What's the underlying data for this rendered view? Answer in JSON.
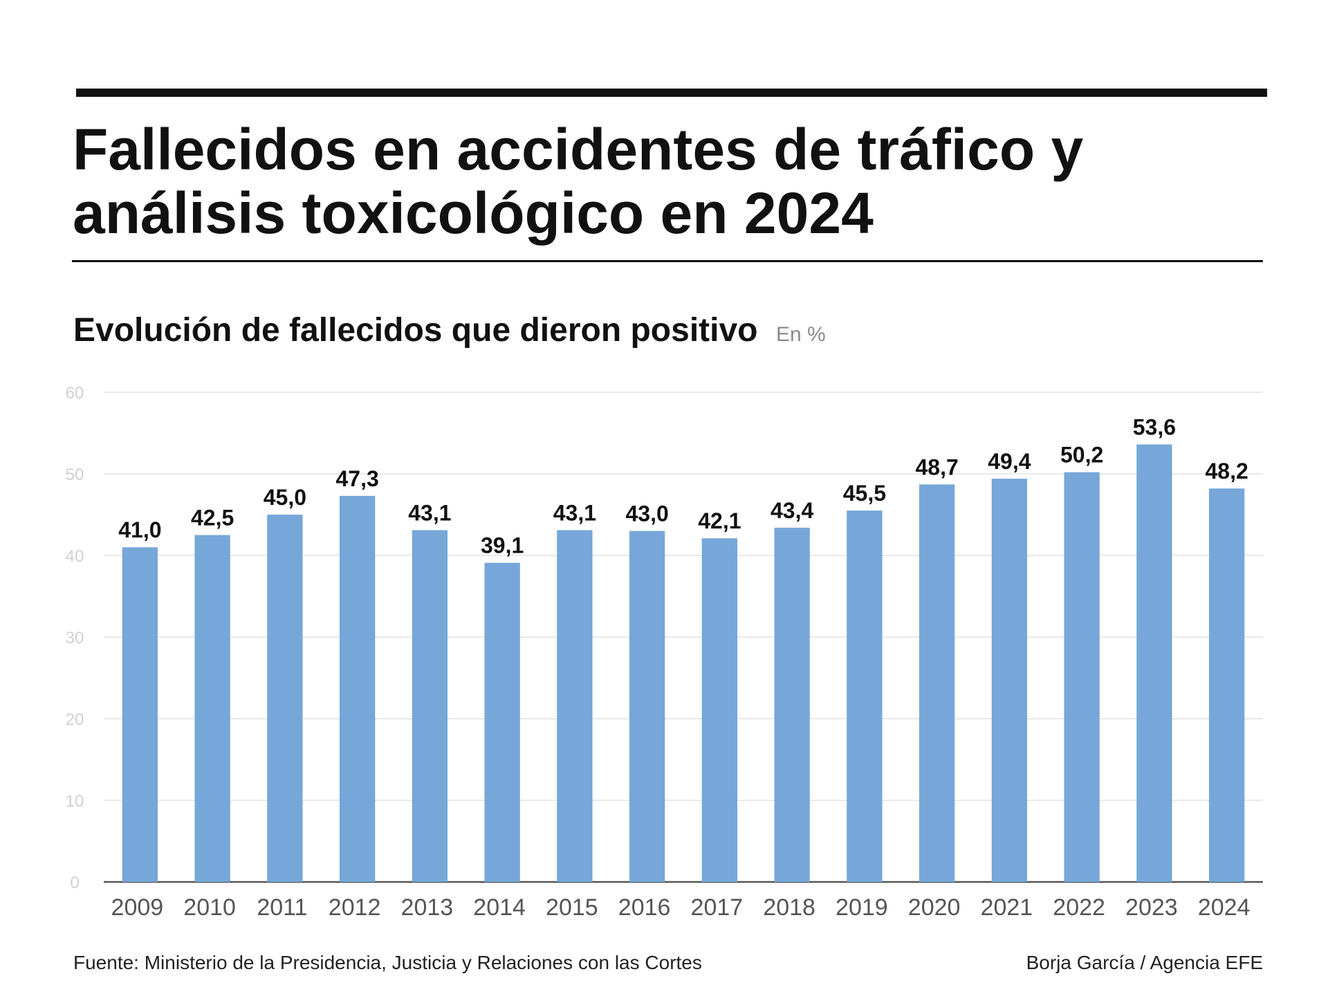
{
  "header": {
    "title_line1": "Fallecidos en accidentes de tráfico y",
    "title_line2": "análisis toxicológico en 2024"
  },
  "subtitle": "Evolución de fallecidos que dieron positivo",
  "unit": "En %",
  "footer": {
    "source": "Fuente: Ministerio de la Presidencia, Justicia y Relaciones con las Cortes",
    "credit": "Borja García / Agencia EFE"
  },
  "colors": {
    "bar": "#76a7d8",
    "grid": "#e2e2e2",
    "axis": "#555555"
  },
  "chart_data": {
    "type": "bar",
    "title": "Evolución de fallecidos que dieron positivo",
    "ylabel": "",
    "xlabel": "",
    "ylim": [
      0,
      60
    ],
    "yticks": [
      0,
      10,
      20,
      30,
      40,
      50,
      60
    ],
    "grid": true,
    "categories": [
      "2009",
      "2010",
      "2011",
      "2012",
      "2013",
      "2014",
      "2015",
      "2016",
      "2017",
      "2018",
      "2019",
      "2020",
      "2021",
      "2022",
      "2023",
      "2024"
    ],
    "values": [
      41.0,
      42.5,
      45.0,
      47.3,
      43.1,
      39.1,
      43.1,
      43.0,
      42.1,
      43.4,
      45.5,
      48.7,
      49.4,
      50.2,
      53.6,
      48.2
    ],
    "value_labels": [
      "41,0",
      "42,5",
      "45,0",
      "47,3",
      "43,1",
      "39,1",
      "43,1",
      "43,0",
      "42,1",
      "43,4",
      "45,5",
      "48,7",
      "49,4",
      "50,2",
      "53,6",
      "48,2"
    ]
  }
}
